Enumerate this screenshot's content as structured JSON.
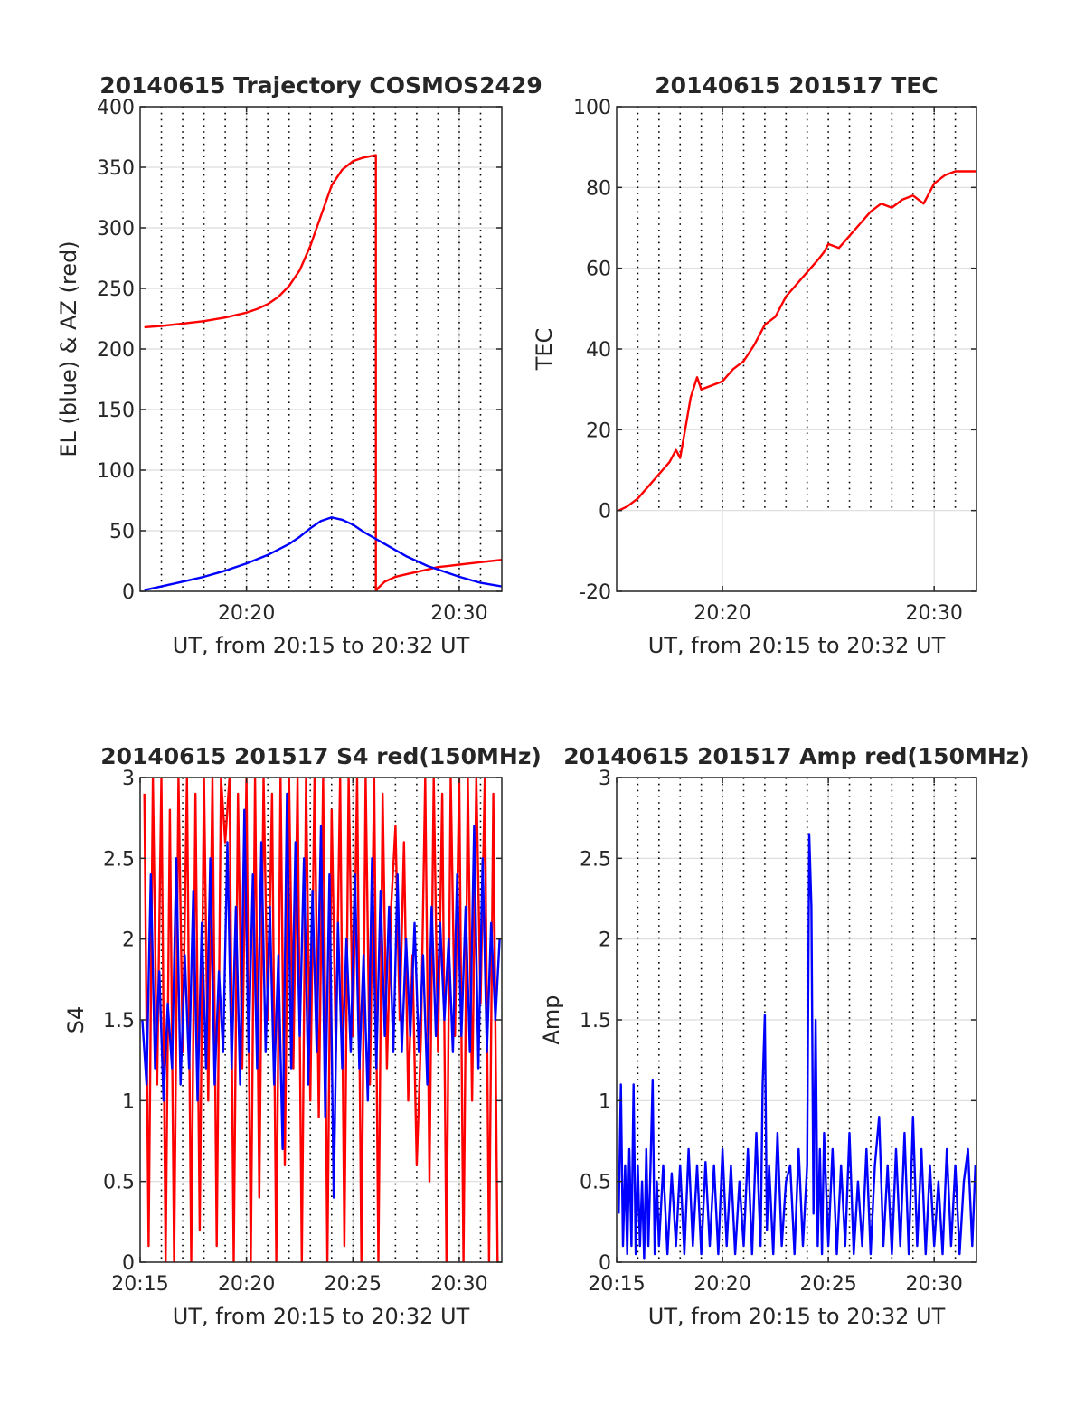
{
  "figure": {
    "background": "#ffffff"
  },
  "chart_data": [
    {
      "id": "trajectory",
      "type": "line",
      "title": "20140615 Trajectory COSMOS2429",
      "xlabel": "UT, from 20:15 to 20:32 UT",
      "ylabel": "EL (blue) & AZ (red)",
      "xlim_minutes": [
        15.0,
        32.0
      ],
      "ylim": [
        0,
        400
      ],
      "yticks": [
        0,
        50,
        100,
        150,
        200,
        250,
        300,
        350,
        400
      ],
      "ytick_labels": [
        "0",
        "50",
        "100",
        "150",
        "200",
        "250",
        "300",
        "350",
        "400"
      ],
      "xticks_minutes": [
        20,
        30
      ],
      "xtick_labels": [
        "20:20",
        "20:30"
      ],
      "grid": true,
      "dotted_vertical_lines_minutes": [
        16,
        17,
        18,
        19,
        20,
        21,
        22,
        23,
        24,
        25,
        26,
        27,
        28,
        29,
        30,
        31
      ],
      "series": [
        {
          "color": "#ff0000",
          "x_minutes": [
            15.2,
            16,
            17,
            18,
            19,
            20,
            20.5,
            21,
            21.5,
            22,
            22.5,
            23,
            23.5,
            24,
            24.5,
            25,
            25.5,
            26.08,
            26.08,
            26.2,
            26.5,
            27,
            27.5,
            28,
            28.5,
            29,
            29.5,
            30,
            30.5,
            31,
            31.5,
            32
          ],
          "y": [
            218,
            219,
            221,
            223,
            226,
            230,
            233,
            237,
            243,
            252,
            265,
            285,
            310,
            335,
            348,
            355,
            358,
            360,
            0,
            3,
            8,
            12,
            14,
            16,
            18,
            20,
            21,
            22,
            23,
            24,
            25,
            26
          ]
        },
        {
          "color": "#0000ff",
          "x_minutes": [
            15.2,
            16,
            17,
            18,
            19,
            20,
            21,
            22,
            22.5,
            23,
            23.5,
            24,
            24.5,
            25,
            25.5,
            26,
            26.5,
            27,
            27.5,
            28,
            28.5,
            29,
            30,
            31,
            32
          ],
          "y": [
            1,
            4,
            8,
            12,
            17,
            23,
            30,
            39,
            45,
            52,
            58,
            61,
            59,
            55,
            49,
            44,
            39,
            34,
            29,
            25,
            21,
            18,
            12,
            7,
            4
          ]
        }
      ]
    },
    {
      "id": "tec",
      "type": "line",
      "title": "20140615 201517 TEC",
      "xlabel": "UT, from 20:15 to 20:32 UT",
      "ylabel": "TEC",
      "xlim_minutes": [
        15.0,
        32.0
      ],
      "ylim": [
        -20,
        100
      ],
      "yticks": [
        -20,
        0,
        20,
        40,
        60,
        80,
        100
      ],
      "ytick_labels": [
        "-20",
        "0",
        "20",
        "40",
        "60",
        "80",
        "100"
      ],
      "xticks_minutes": [
        20,
        30
      ],
      "xtick_labels": [
        "20:20",
        "20:30"
      ],
      "grid": true,
      "dotted_vertical_lines_minutes": [
        16,
        17,
        18,
        19,
        20,
        21,
        22,
        23,
        24,
        25,
        26,
        27,
        28,
        29,
        30,
        31
      ],
      "dotted_vertical_span": [
        0,
        100
      ],
      "series": [
        {
          "color": "#ff0000",
          "x_minutes": [
            15.1,
            15.5,
            16.0,
            16.5,
            17.0,
            17.5,
            17.8,
            18.0,
            18.3,
            18.5,
            18.8,
            19.0,
            19.5,
            20.0,
            20.5,
            21.0,
            21.5,
            22.0,
            22.5,
            23.0,
            23.5,
            24.0,
            24.5,
            24.8,
            25.0,
            25.5,
            26.0,
            26.5,
            27.0,
            27.5,
            28.0,
            28.5,
            29.0,
            29.5,
            30.0,
            30.5,
            31.0,
            31.5,
            32.0
          ],
          "y": [
            0,
            1,
            3,
            6,
            9,
            12,
            15,
            13,
            22,
            28,
            33,
            30,
            31,
            32,
            35,
            37,
            41,
            46,
            48,
            53,
            56,
            59,
            62,
            64,
            66,
            65,
            68,
            71,
            74,
            76,
            75,
            77,
            78,
            76,
            81,
            83,
            84,
            84,
            84
          ]
        }
      ]
    },
    {
      "id": "s4",
      "type": "line",
      "title": "20140615 201517 S4 red(150MHz)",
      "xlabel": "UT, from 20:15 to 20:32 UT",
      "ylabel": "S4",
      "xlim_minutes": [
        15.0,
        32.0
      ],
      "ylim": [
        0,
        3
      ],
      "yticks": [
        0,
        0.5,
        1,
        1.5,
        2,
        2.5,
        3
      ],
      "ytick_labels": [
        "0",
        "0.5",
        "1",
        "1.5",
        "2",
        "2.5",
        "3"
      ],
      "xticks_minutes": [
        15,
        20,
        25,
        30
      ],
      "xtick_labels": [
        "20:15",
        "20:20",
        "20:25",
        "20:30"
      ],
      "grid": true,
      "dotted_vertical_lines_minutes": [
        16,
        17,
        18,
        19,
        20,
        21,
        22,
        23,
        24,
        25,
        26,
        27,
        28,
        29,
        30,
        31
      ],
      "series": [
        {
          "color": "#ff0000",
          "x_minutes": [
            15.2,
            15.4,
            15.6,
            15.8,
            16.0,
            16.2,
            16.4,
            16.6,
            16.8,
            17.0,
            17.2,
            17.4,
            17.6,
            17.8,
            18.0,
            18.2,
            18.4,
            18.6,
            18.8,
            19.0,
            19.2,
            19.4,
            19.6,
            19.8,
            20.0,
            20.2,
            20.4,
            20.6,
            20.8,
            21.0,
            21.2,
            21.4,
            21.6,
            21.8,
            22.0,
            22.2,
            22.4,
            22.6,
            22.8,
            23.0,
            23.2,
            23.4,
            23.6,
            23.8,
            24.0,
            24.2,
            24.4,
            24.6,
            24.8,
            25.0,
            25.2,
            25.4,
            25.6,
            25.8,
            26.0,
            26.2,
            26.4,
            26.6,
            26.8,
            27.0,
            27.2,
            27.4,
            27.6,
            27.8,
            28.0,
            28.2,
            28.4,
            28.6,
            28.8,
            29.0,
            29.2,
            29.4,
            29.6,
            29.8,
            30.0,
            30.2,
            30.4,
            30.6,
            30.8,
            31.0,
            31.2,
            31.4,
            31.6,
            31.8
          ],
          "y": [
            2.9,
            0.1,
            3.0,
            1.1,
            3.0,
            0.0,
            2.8,
            0.0,
            3.0,
            1.3,
            3.0,
            0.0,
            2.9,
            0.2,
            3.0,
            1.0,
            3.0,
            0.1,
            3.0,
            2.6,
            3.0,
            0.0,
            2.9,
            1.2,
            3.0,
            0.0,
            3.0,
            0.4,
            3.0,
            1.5,
            2.9,
            0.0,
            3.0,
            0.6,
            3.0,
            1.2,
            3.0,
            0.0,
            3.0,
            1.0,
            3.0,
            0.9,
            3.0,
            0.0,
            2.8,
            1.3,
            3.0,
            0.1,
            3.0,
            1.4,
            3.0,
            0.0,
            3.0,
            1.1,
            3.0,
            0.0,
            2.9,
            1.2,
            2.2,
            2.7,
            1.5,
            2.6,
            1.0,
            1.9,
            0.6,
            1.4,
            3.0,
            0.5,
            3.0,
            1.3,
            2.9,
            0.0,
            3.0,
            1.4,
            3.0,
            0.0,
            3.0,
            1.0,
            3.0,
            1.6,
            3.0,
            0.0,
            2.9,
            0.0
          ]
        },
        {
          "color": "#0000ff",
          "x_minutes": [
            15.1,
            15.3,
            15.5,
            15.7,
            15.9,
            16.1,
            16.3,
            16.5,
            16.7,
            16.9,
            17.1,
            17.3,
            17.5,
            17.7,
            17.9,
            18.1,
            18.3,
            18.5,
            18.7,
            18.9,
            19.1,
            19.3,
            19.5,
            19.7,
            19.9,
            20.1,
            20.3,
            20.5,
            20.7,
            20.9,
            21.1,
            21.3,
            21.5,
            21.7,
            21.9,
            22.1,
            22.3,
            22.5,
            22.7,
            22.9,
            23.1,
            23.3,
            23.5,
            23.7,
            23.9,
            24.1,
            24.3,
            24.5,
            24.7,
            24.9,
            25.1,
            25.3,
            25.5,
            25.7,
            25.9,
            26.1,
            26.3,
            26.5,
            26.7,
            26.9,
            27.1,
            27.3,
            27.5,
            27.7,
            27.9,
            28.1,
            28.3,
            28.5,
            28.7,
            28.9,
            29.1,
            29.3,
            29.5,
            29.7,
            29.9,
            30.1,
            30.3,
            30.5,
            30.7,
            30.9,
            31.1,
            31.3,
            31.5,
            31.7,
            31.9
          ],
          "y": [
            1.5,
            1.1,
            2.4,
            1.2,
            1.8,
            1.0,
            1.6,
            1.2,
            2.5,
            1.1,
            1.9,
            1.2,
            2.3,
            1.0,
            2.1,
            1.2,
            2.5,
            1.1,
            1.8,
            1.3,
            2.6,
            1.2,
            2.2,
            1.1,
            2.8,
            1.3,
            2.4,
            1.2,
            2.6,
            1.3,
            2.2,
            1.1,
            1.9,
            0.7,
            2.9,
            1.2,
            2.6,
            1.4,
            2.5,
            1.1,
            2.3,
            1.3,
            2.7,
            0.9,
            2.4,
            0.4,
            2.1,
            1.2,
            2.0,
            1.3,
            2.4,
            1.2,
            1.9,
            1.0,
            2.5,
            1.2,
            2.3,
            1.4,
            2.2,
            1.3,
            2.4,
            1.3,
            2.0,
            1.4,
            2.1,
            1.3,
            1.9,
            1.1,
            2.2,
            1.4,
            2.1,
            1.5,
            2.0,
            1.3,
            2.4,
            1.4,
            2.2,
            1.3,
            2.7,
            1.2,
            2.5,
            1.3,
            2.1,
            1.5,
            2.0
          ]
        }
      ]
    },
    {
      "id": "amp",
      "type": "line",
      "title": "20140615 201517 Amp red(150MHz)",
      "xlabel": "UT, from 20:15 to 20:32 UT",
      "ylabel": "Amp",
      "xlim_minutes": [
        15.0,
        32.0
      ],
      "ylim": [
        0,
        3
      ],
      "yticks": [
        0,
        0.5,
        1,
        1.5,
        2,
        2.5,
        3
      ],
      "ytick_labels": [
        "0",
        "0.5",
        "1",
        "1.5",
        "2",
        "2.5",
        "3"
      ],
      "xticks_minutes": [
        15,
        20,
        25,
        30
      ],
      "xtick_labels": [
        "20:15",
        "20:20",
        "20:25",
        "20:30"
      ],
      "grid": true,
      "dotted_vertical_lines_minutes": [
        16,
        17,
        18,
        19,
        20,
        21,
        22,
        23,
        24,
        25,
        26,
        27,
        28,
        29,
        30,
        31
      ],
      "series": [
        {
          "color": "#0000ff",
          "x_minutes": [
            15.1,
            15.2,
            15.3,
            15.4,
            15.5,
            15.6,
            15.7,
            15.8,
            15.9,
            16.0,
            16.1,
            16.2,
            16.3,
            16.4,
            16.5,
            16.6,
            16.7,
            16.8,
            16.9,
            17.0,
            17.2,
            17.4,
            17.6,
            17.8,
            18.0,
            18.2,
            18.4,
            18.6,
            18.8,
            19.0,
            19.2,
            19.4,
            19.6,
            19.8,
            20.0,
            20.2,
            20.4,
            20.6,
            20.8,
            21.0,
            21.2,
            21.4,
            21.6,
            21.8,
            21.9,
            22.0,
            22.1,
            22.2,
            22.4,
            22.6,
            22.8,
            23.0,
            23.2,
            23.4,
            23.6,
            23.8,
            24.0,
            24.1,
            24.2,
            24.3,
            24.4,
            24.5,
            24.6,
            24.7,
            24.8,
            25.0,
            25.2,
            25.4,
            25.6,
            25.8,
            26.0,
            26.2,
            26.4,
            26.6,
            26.8,
            27.0,
            27.2,
            27.4,
            27.6,
            27.8,
            28.0,
            28.2,
            28.4,
            28.6,
            28.8,
            29.0,
            29.2,
            29.4,
            29.6,
            29.8,
            30.0,
            30.2,
            30.4,
            30.6,
            30.8,
            31.0,
            31.2,
            31.4,
            31.6,
            31.8,
            31.95
          ],
          "y": [
            0.3,
            1.1,
            0.1,
            0.6,
            0.05,
            0.7,
            0.1,
            1.1,
            0.05,
            0.6,
            0.1,
            0.5,
            0.02,
            0.7,
            0.1,
            0.6,
            1.13,
            0.05,
            0.5,
            0.1,
            0.6,
            0.05,
            0.55,
            0.1,
            0.6,
            0.05,
            0.7,
            0.1,
            0.6,
            0.05,
            0.62,
            0.1,
            0.6,
            0.05,
            0.7,
            0.1,
            0.6,
            0.05,
            0.5,
            0.1,
            0.7,
            0.05,
            0.8,
            0.1,
            1.1,
            1.53,
            0.2,
            0.6,
            0.05,
            0.8,
            0.1,
            0.5,
            0.6,
            0.05,
            0.7,
            0.1,
            0.6,
            2.65,
            2.2,
            0.3,
            1.5,
            0.1,
            0.7,
            0.05,
            0.8,
            0.1,
            0.7,
            0.05,
            0.6,
            0.1,
            0.8,
            0.05,
            0.5,
            0.1,
            0.7,
            0.05,
            0.6,
            0.9,
            0.1,
            0.6,
            0.05,
            0.7,
            0.1,
            0.8,
            0.05,
            0.9,
            0.1,
            0.7,
            0.05,
            0.6,
            0.1,
            0.5,
            0.05,
            0.7,
            0.1,
            0.6,
            0.05,
            0.5,
            0.7,
            0.1,
            0.6
          ]
        }
      ]
    }
  ]
}
